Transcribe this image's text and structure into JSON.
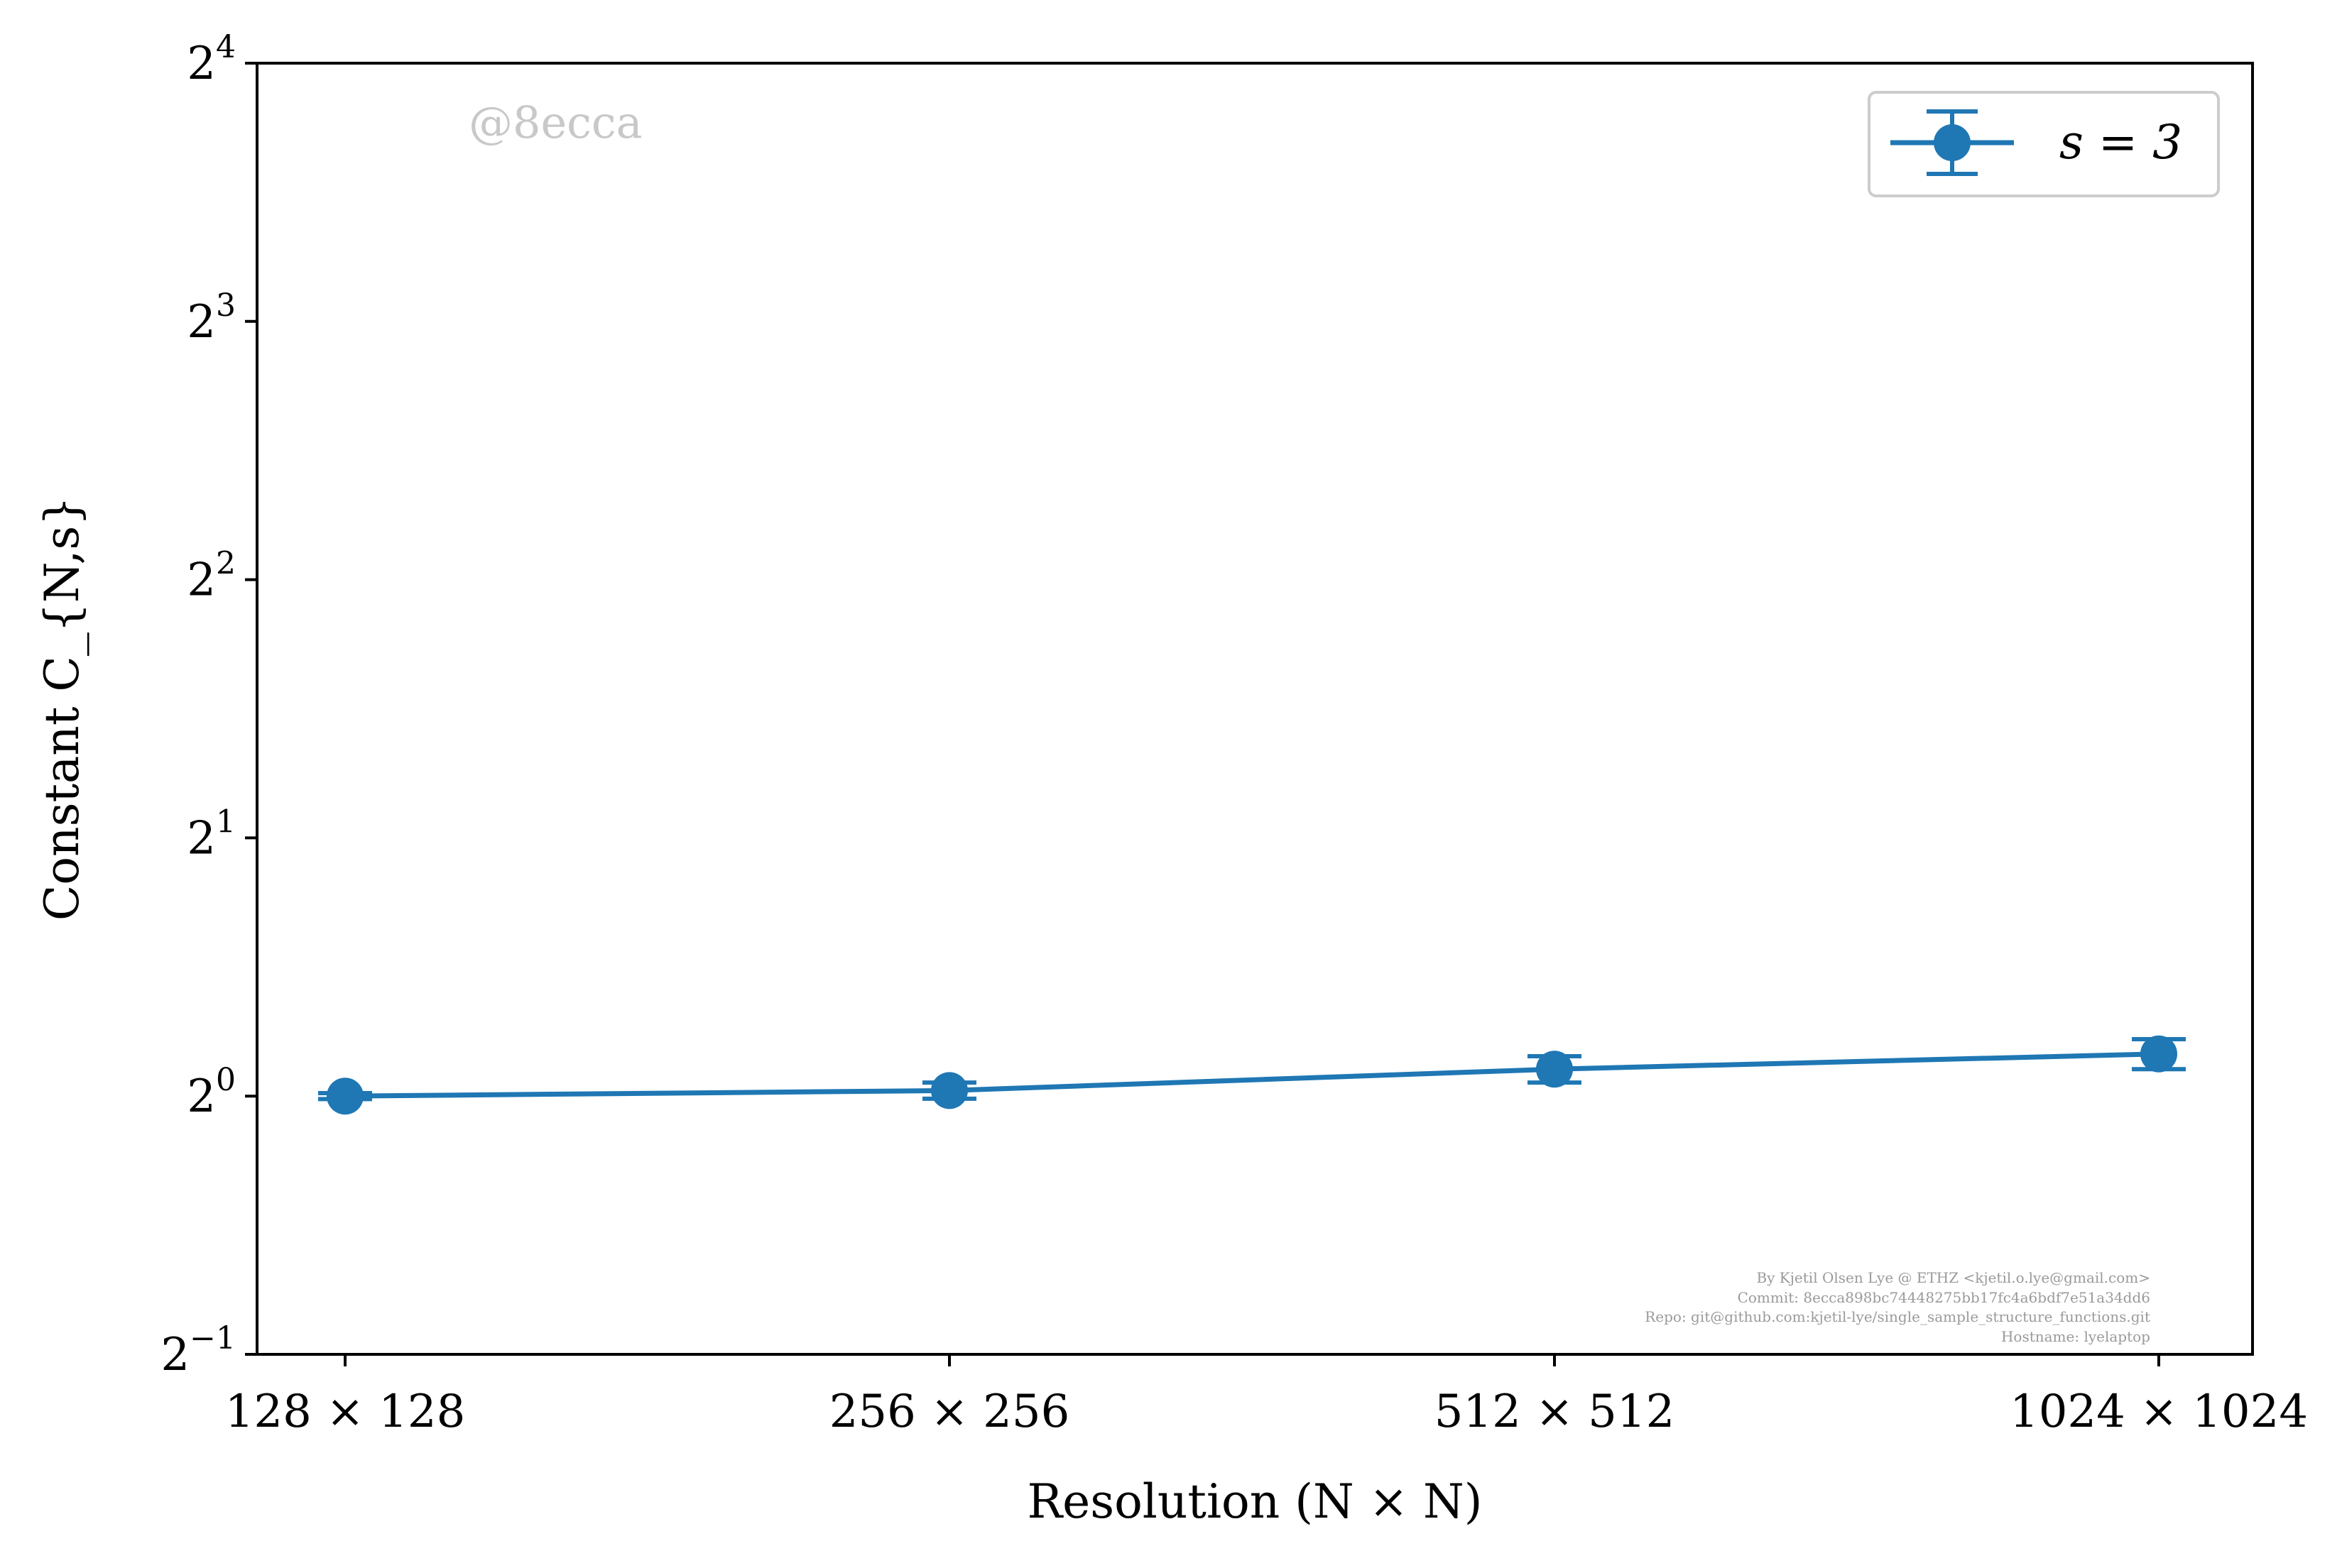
{
  "chart_data": {
    "type": "line",
    "xlabel": "Resolution (N × N)",
    "ylabel": "Constant C_{N,s}",
    "categories": [
      "128 × 128",
      "256 × 256",
      "512 × 512",
      "1024 × 1024"
    ],
    "y_scale": "log2",
    "ylim": [
      0.5,
      16
    ],
    "yticks": [
      {
        "value": 0.5,
        "base": "2",
        "exp": "−1"
      },
      {
        "value": 1,
        "base": "2",
        "exp": "0"
      },
      {
        "value": 2,
        "base": "2",
        "exp": "1"
      },
      {
        "value": 4,
        "base": "2",
        "exp": "2"
      },
      {
        "value": 8,
        "base": "2",
        "exp": "3"
      },
      {
        "value": 16,
        "base": "2",
        "exp": "4"
      }
    ],
    "grid": false,
    "legend_position": "top-right",
    "series": [
      {
        "name": "s = 3",
        "color": "#1f77b4",
        "values": [
          1.0,
          1.015,
          1.075,
          1.12
        ],
        "error": [
          0.008,
          0.022,
          0.038,
          0.045
        ]
      }
    ]
  },
  "watermark": "@8ecca",
  "credits": [
    "By Kjetil Olsen Lye @ ETHZ <kjetil.o.lye@gmail.com>",
    "Commit: 8ecca898bc74448275bb17fc4a6bdf7e51a34dd6",
    "Repo: git@github.com:kjetil-lye/single_sample_structure_functions.git",
    "Hostname: lyelaptop"
  ]
}
